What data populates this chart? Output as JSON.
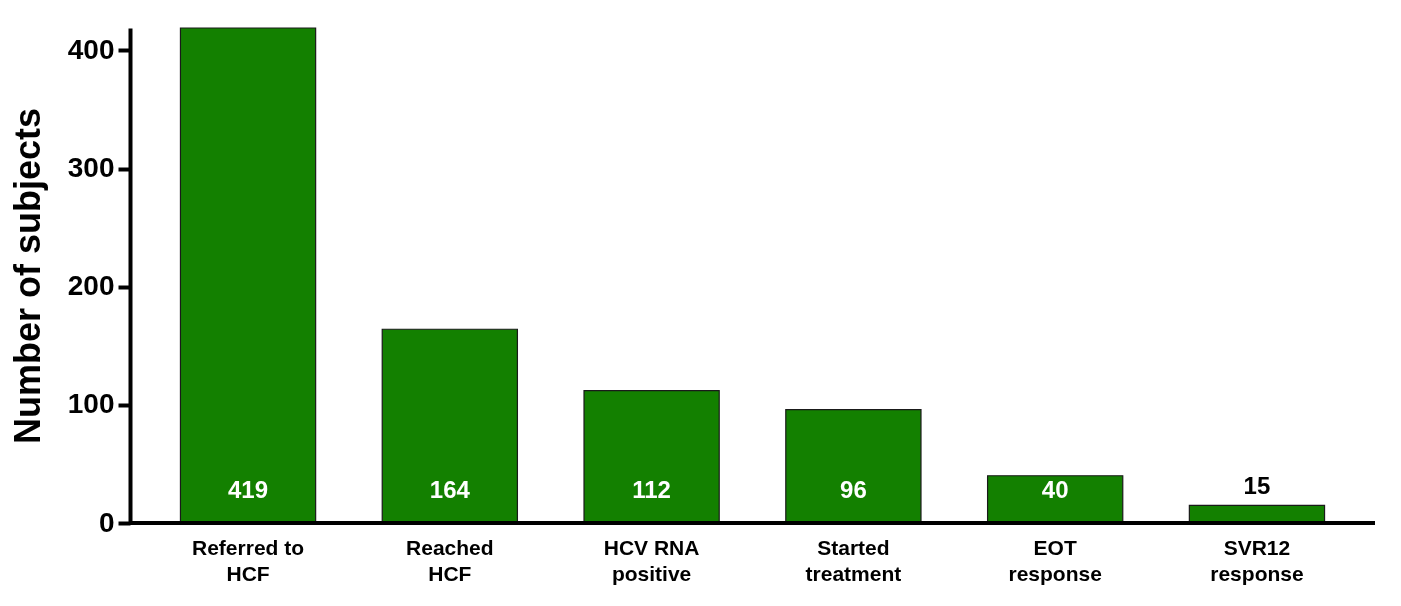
{
  "chart_data": {
    "type": "bar",
    "ylabel": "Number of subjects",
    "categories": [
      "Referred to HCF",
      "Reached HCF",
      "HCV RNA positive",
      "Started treatment",
      "EOT response",
      "SVR12 response"
    ],
    "values": [
      419,
      164,
      112,
      96,
      40,
      15
    ],
    "color": "#138000",
    "ylim": [
      0,
      419
    ],
    "yticks": [
      0,
      100,
      200,
      300,
      400
    ],
    "grid": false,
    "data_labels": true
  }
}
